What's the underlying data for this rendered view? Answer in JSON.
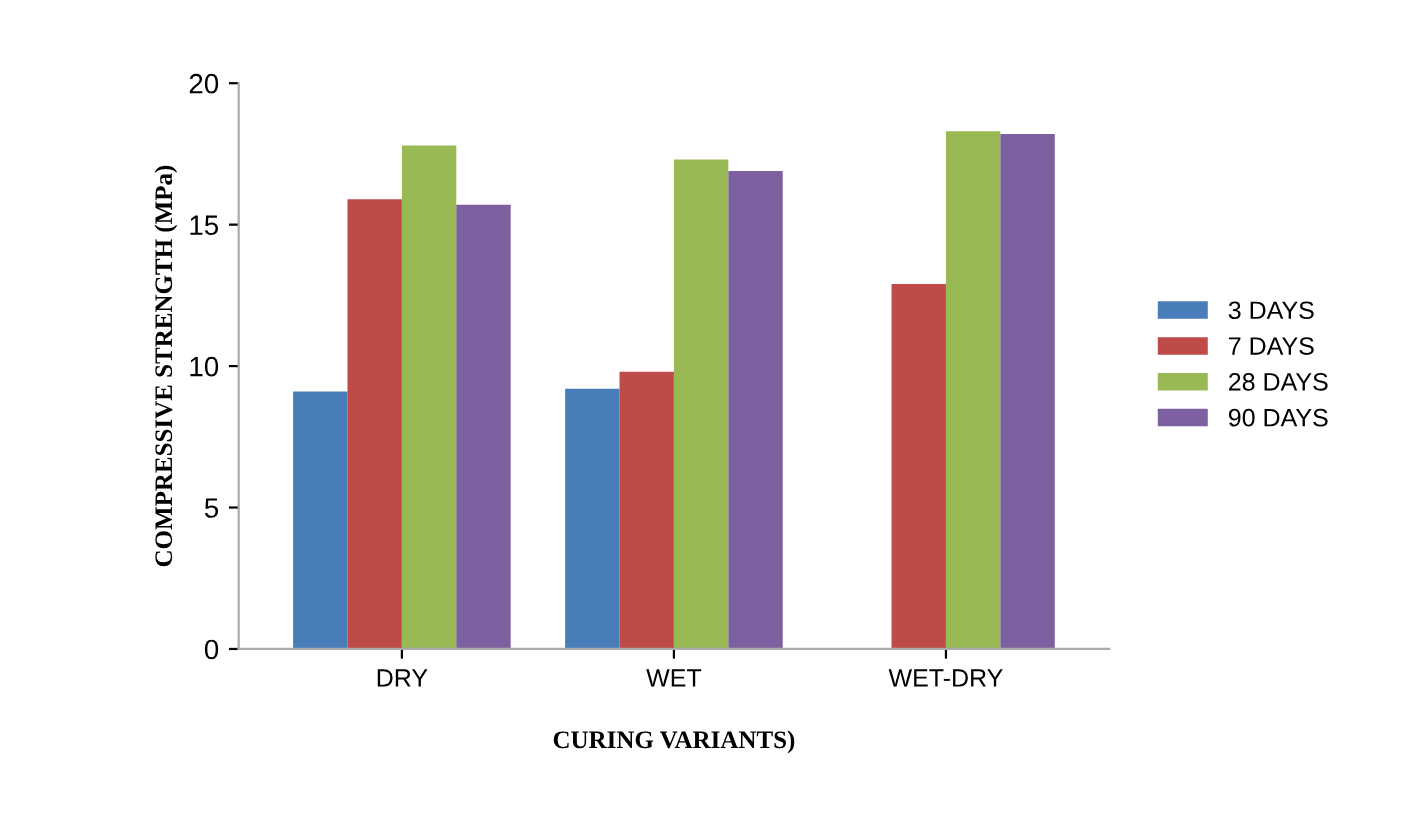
{
  "chart_data": {
    "type": "bar",
    "xlabel": "CURING VARIANTS)",
    "ylabel": "COMPRESSIVE STRENGTH (MPa)",
    "categories": [
      "DRY",
      "WET",
      "WET-DRY"
    ],
    "series": [
      {
        "name": "3 DAYS",
        "color": "#4a7ebb",
        "values": [
          9.1,
          9.2,
          null
        ]
      },
      {
        "name": "7 DAYS",
        "color": "#be4b48",
        "values": [
          15.9,
          9.8,
          12.9
        ]
      },
      {
        "name": "28 DAYS",
        "color": "#98b954",
        "values": [
          17.8,
          17.3,
          18.3
        ]
      },
      {
        "name": "90 DAYS",
        "color": "#7d60a0",
        "values": [
          15.7,
          16.9,
          18.2
        ]
      }
    ],
    "ylim": [
      0,
      20
    ],
    "yticks": [
      0,
      5,
      10,
      15,
      20
    ],
    "grid": false,
    "legend": "right"
  }
}
